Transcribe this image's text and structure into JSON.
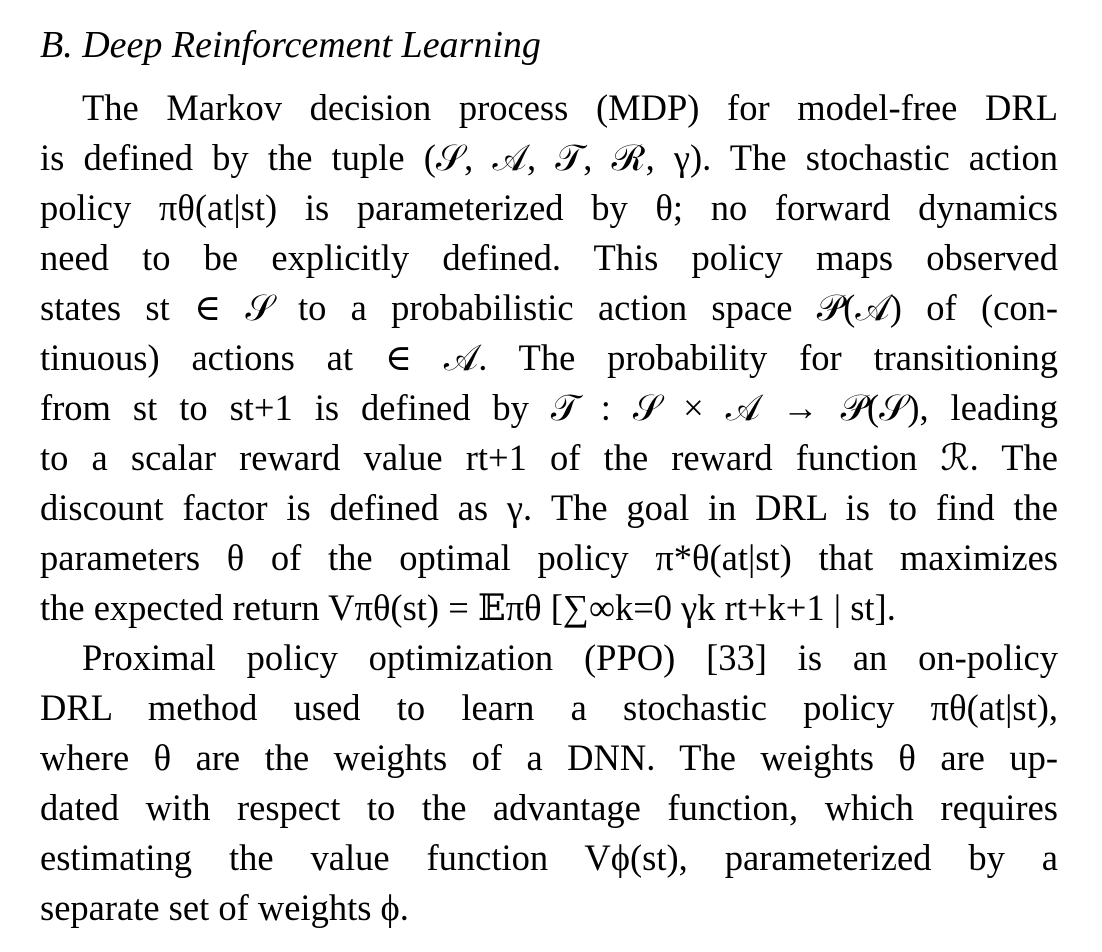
{
  "section": {
    "heading": "B. Deep Reinforcement Learning"
  },
  "paragraphs": [
    {
      "lines": [
        "The Markov decision process (MDP) for model-free DRL",
        "is defined by the tuple (𝒮, 𝒜, 𝒯, ℛ, γ). The stochastic action",
        "policy πθ(at|st) is parameterized by θ; no forward dynamics",
        "need to be explicitly defined. This policy maps observed",
        "states st ∈ 𝒮 to a probabilistic action space 𝒫(𝒜) of (con-",
        "tinuous) actions at ∈ 𝒜. The probability for transitioning",
        "from st to st+1 is defined by 𝒯 : 𝒮 × 𝒜 → 𝒫(𝒮), leading",
        "to a scalar reward value rt+1 of the reward function ℛ. The",
        "discount factor is defined as γ. The goal in DRL is to find the",
        "parameters θ of the optimal policy π*θ(at|st) that maximizes",
        "the expected return Vπθ(st) = 𝔼πθ [∑∞k=0 γk rt+k+1 | st]."
      ]
    },
    {
      "lines": [
        "Proximal policy optimization (PPO) [33] is an on-policy",
        "DRL method used to learn a stochastic policy πθ(at|st),",
        "where θ are the weights of a DNN. The weights θ are up-",
        "dated with respect to the advantage function, which requires",
        "estimating the value function Vϕ(st), parameterized by a",
        "separate set of weights ϕ."
      ]
    }
  ]
}
